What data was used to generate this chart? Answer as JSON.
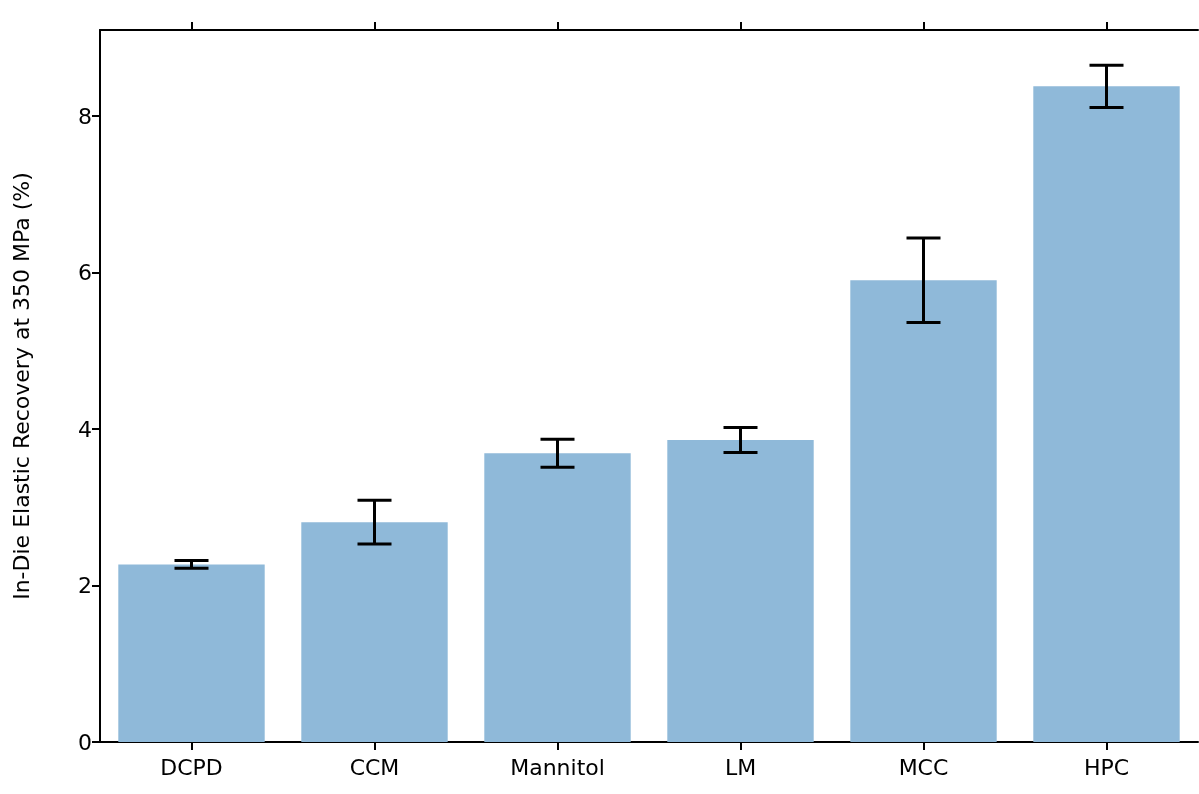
{
  "chart_data": {
    "type": "bar",
    "ylabel": "In-Die Elastic Recovery at 350 MPa (%)",
    "categories": [
      "DCPD",
      "CCM",
      "Mannitol",
      "LM",
      "MCC",
      "HPC"
    ],
    "values": [
      2.27,
      2.81,
      3.69,
      3.86,
      5.9,
      8.38
    ],
    "errors": [
      0.05,
      0.28,
      0.18,
      0.16,
      0.54,
      0.27
    ],
    "color": "#8fb9d9",
    "ylim": [
      0,
      9.1
    ],
    "yticks": [
      0,
      2,
      4,
      6,
      8
    ],
    "grid": false
  }
}
